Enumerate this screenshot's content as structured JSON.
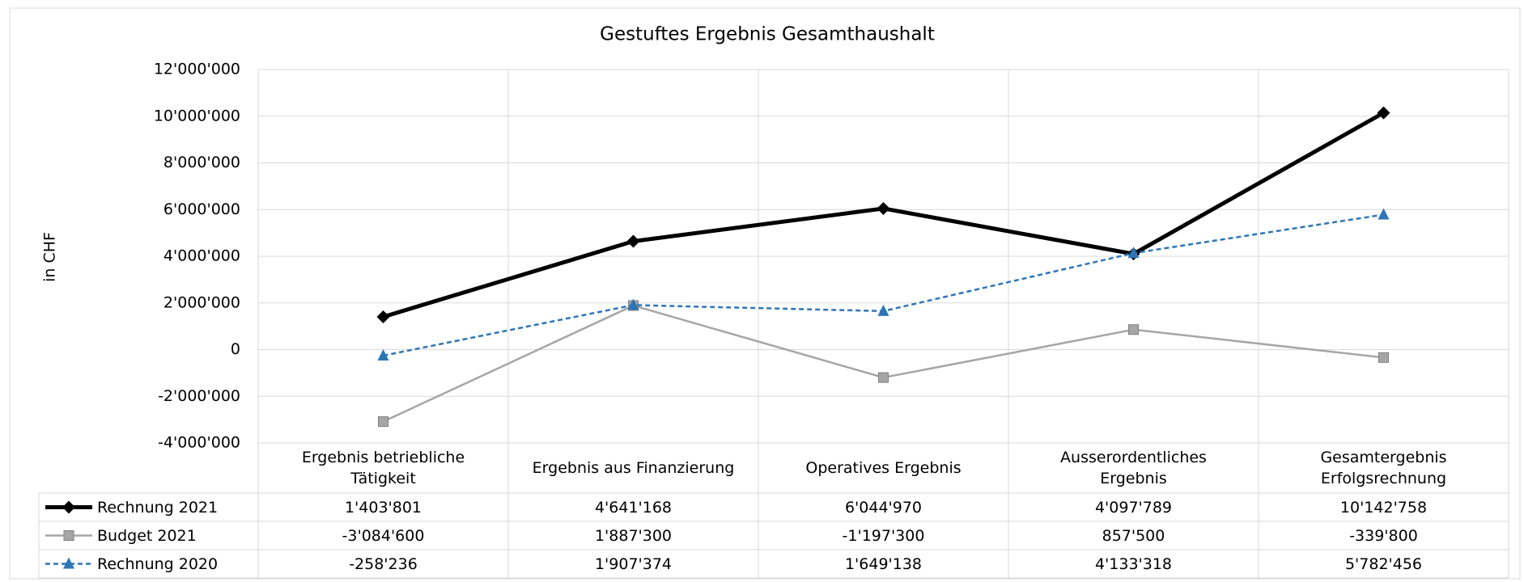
{
  "chart_data": {
    "type": "line",
    "title": "Gestuftes Ergebnis Gesamthaushalt",
    "y_label": "in CHF",
    "categories": [
      "Ergebnis betriebliche Tätigkeit",
      "Ergebnis aus Finanzierung",
      "Operatives Ergebnis",
      "Ausserordentliches Ergebnis",
      "Gesamtergebnis Erfolgsrechnung"
    ],
    "series": [
      {
        "name": "Rechnung 2021",
        "color": "#000000",
        "marker": "diamond",
        "dashed": false,
        "width": 5,
        "values": [
          1403801,
          4641168,
          6044970,
          4097789,
          10142758
        ],
        "value_labels": [
          "1'403'801",
          "4'641'168",
          "6'044'970",
          "4'097'789",
          "10'142'758"
        ]
      },
      {
        "name": "Budget 2021",
        "color": "#a6a6a6",
        "marker": "square",
        "dashed": false,
        "width": 2.5,
        "values": [
          -3084600,
          1887300,
          -1197300,
          857500,
          -339800
        ],
        "value_labels": [
          "-3'084'600",
          "1'887'300",
          "-1'197'300",
          "857'500",
          "-339'800"
        ]
      },
      {
        "name": "Rechnung 2020",
        "color": "#2e75b6",
        "marker": "triangle",
        "dashed": true,
        "width": 2.5,
        "values": [
          -258236,
          1907374,
          1649138,
          4133318,
          5782456
        ],
        "value_labels": [
          "-258'236",
          "1'907'374",
          "1'649'138",
          "4'133'318",
          "5'782'456"
        ]
      }
    ],
    "ylim": [
      -4000000,
      12000000
    ],
    "yticks": [
      {
        "value": -4000000,
        "label": "-4'000'000"
      },
      {
        "value": -2000000,
        "label": "-2'000'000"
      },
      0,
      {
        "value": 2000000,
        "label": "2'000'000"
      },
      {
        "value": 4000000,
        "label": "4'000'000"
      },
      {
        "value": 6000000,
        "label": "6'000'000"
      },
      {
        "value": 8000000,
        "label": "8'000'000"
      },
      {
        "value": 10000000,
        "label": "10'000'000"
      },
      {
        "value": 12000000,
        "label": "12'000'000"
      }
    ],
    "grid": true
  }
}
